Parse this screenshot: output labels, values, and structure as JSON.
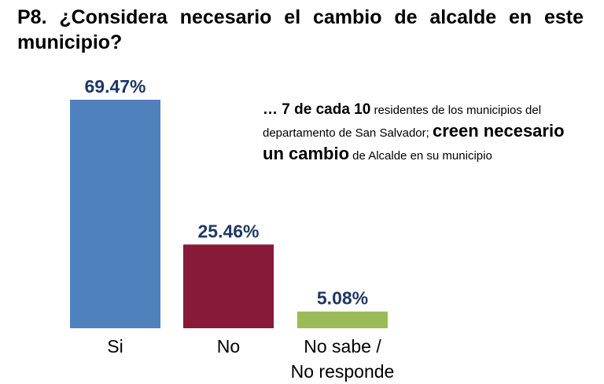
{
  "title": "P8. ¿Considera necesario el cambio de alcalde en este municipio?",
  "annotation": {
    "part1": "… 7 de cada 10",
    "part2": " residentes de los municipios del departamento de San Salvador; ",
    "part3": "creen necesario un cambio",
    "part4": " de Alcalde en su municipio"
  },
  "chart_data": {
    "type": "bar",
    "categories": [
      "Si",
      "No",
      "No sabe /\nNo responde"
    ],
    "values": [
      69.47,
      25.46,
      5.08
    ],
    "labels": [
      "69.47%",
      "25.46%",
      "5.08%"
    ],
    "colors": [
      "#4F81BD",
      "#861A38",
      "#9BBB59"
    ],
    "label_color": "#1F3864",
    "ylim": [
      0,
      69.47
    ],
    "xlabel": "",
    "ylabel": "",
    "grid": false
  }
}
